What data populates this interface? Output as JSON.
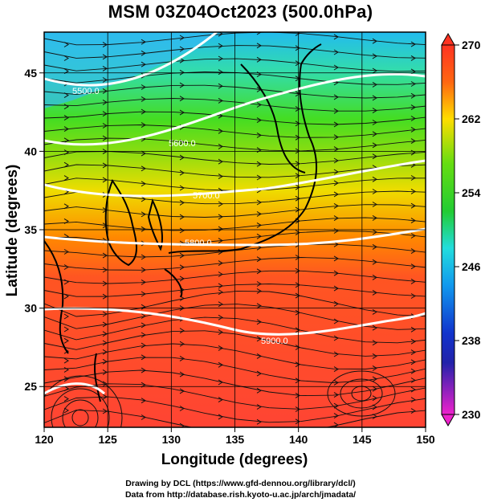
{
  "title": "MSM 03Z04Oct2023 (500.0hPa)",
  "map": {
    "x_axis": {
      "label": "Longitude (degrees)",
      "ticks": [
        120,
        125,
        130,
        135,
        140,
        145,
        150
      ],
      "range": [
        120,
        150
      ]
    },
    "y_axis": {
      "label": "Latitude  (degrees)",
      "ticks": [
        25,
        30,
        35,
        40,
        45
      ],
      "range": [
        22.4,
        47.6
      ]
    },
    "contour_labels": [
      "5500.0",
      "5600.0",
      "5700.0",
      "5800.0",
      "5900.0"
    ],
    "field_colors": {
      "north_cyan": "#33ccee",
      "green": "#44dd22",
      "yellow": "#eedd00",
      "orange": "#ff8800",
      "red_south": "#ff4433"
    }
  },
  "colorbar": {
    "min": 230,
    "max": 270,
    "tick_labels": [
      "270",
      "262",
      "254",
      "246",
      "238",
      "230"
    ]
  },
  "credits": {
    "line1": "Drawing by DCL (https://www.gfd-dennou.org/library/dcl/)",
    "line2": "Data from http://database.rish.kyoto-u.ac.jp/arch/jmadata/"
  }
}
